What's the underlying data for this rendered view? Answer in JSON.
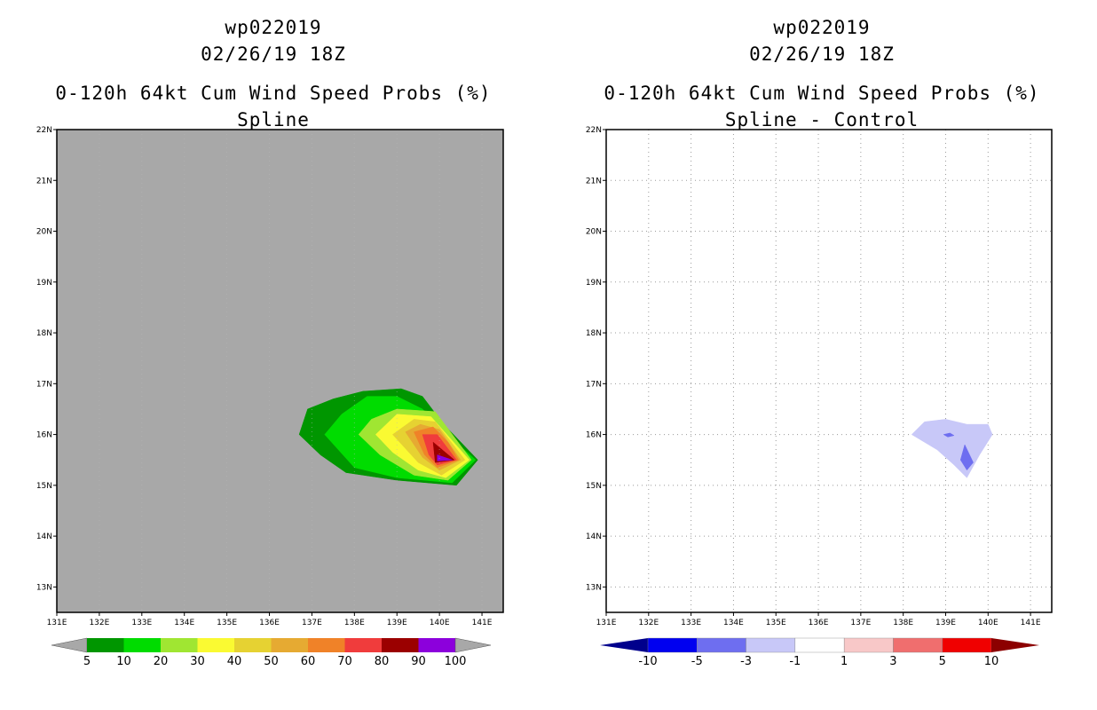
{
  "panels": [
    {
      "id": "left",
      "title_lines": [
        "wp022019",
        "02/26/19 18Z",
        "0-120h 64kt Cum Wind Speed Probs (%)",
        "Spline"
      ],
      "background": "#a8a8a8",
      "grid": false
    },
    {
      "id": "right",
      "title_lines": [
        "wp022019",
        "02/26/19 18Z",
        "0-120h 64kt Cum Wind Speed Probs (%)",
        "Spline - Control"
      ],
      "background": "#ffffff",
      "grid": true
    }
  ],
  "chart_data": [
    {
      "type": "heatmap",
      "subtype": "filled-contour-map",
      "title": "wp022019 02/26/19 18Z 0-120h 64kt Cum Wind Speed Probs (%) Spline",
      "x_axis": {
        "range": [
          131,
          141.5
        ],
        "ticks": [
          131,
          132,
          133,
          134,
          135,
          136,
          137,
          138,
          139,
          140,
          141
        ],
        "tick_labels": [
          "131E",
          "132E",
          "133E",
          "134E",
          "135E",
          "136E",
          "137E",
          "138E",
          "139E",
          "140E",
          "141E"
        ]
      },
      "y_axis": {
        "range": [
          12.5,
          22
        ],
        "ticks": [
          13,
          14,
          15,
          16,
          17,
          18,
          19,
          20,
          21,
          22
        ],
        "tick_labels": [
          "13N",
          "14N",
          "15N",
          "16N",
          "17N",
          "18N",
          "19N",
          "20N",
          "21N",
          "22N"
        ]
      },
      "colorbar": {
        "labels": [
          "5",
          "10",
          "20",
          "30",
          "40",
          "50",
          "60",
          "70",
          "80",
          "90",
          "100"
        ],
        "colors": [
          "#009600",
          "#00dc00",
          "#a0e632",
          "#fafa32",
          "#e6d232",
          "#e6aa32",
          "#f08228",
          "#f03c3c",
          "#9b0000",
          "#8c00dc"
        ]
      },
      "contours": [
        {
          "level": 5,
          "color": "#009600",
          "points": [
            [
              136.7,
              16.0
            ],
            [
              136.9,
              16.5
            ],
            [
              137.5,
              16.7
            ],
            [
              138.2,
              16.85
            ],
            [
              139.1,
              16.9
            ],
            [
              139.6,
              16.75
            ],
            [
              140.1,
              16.2
            ],
            [
              140.9,
              15.5
            ],
            [
              140.4,
              15.0
            ],
            [
              139.0,
              15.1
            ],
            [
              137.8,
              15.25
            ],
            [
              137.2,
              15.6
            ]
          ]
        },
        {
          "level": 10,
          "color": "#00dc00",
          "points": [
            [
              137.3,
              16.0
            ],
            [
              137.7,
              16.4
            ],
            [
              138.3,
              16.75
            ],
            [
              139.0,
              16.75
            ],
            [
              139.6,
              16.5
            ],
            [
              140.05,
              16.1
            ],
            [
              140.85,
              15.5
            ],
            [
              140.3,
              15.05
            ],
            [
              139.0,
              15.15
            ],
            [
              138.0,
              15.35
            ]
          ]
        },
        {
          "level": 20,
          "color": "#a0e632",
          "points": [
            [
              138.1,
              16.0
            ],
            [
              138.4,
              16.3
            ],
            [
              139.0,
              16.5
            ],
            [
              139.9,
              16.45
            ],
            [
              140.75,
              15.5
            ],
            [
              140.2,
              15.1
            ],
            [
              139.4,
              15.2
            ],
            [
              138.6,
              15.6
            ]
          ]
        },
        {
          "level": 30,
          "color": "#fafa32",
          "points": [
            [
              138.5,
              16.0
            ],
            [
              139.0,
              16.4
            ],
            [
              139.8,
              16.35
            ],
            [
              140.7,
              15.5
            ],
            [
              140.15,
              15.15
            ],
            [
              139.5,
              15.3
            ],
            [
              138.9,
              15.65
            ]
          ]
        },
        {
          "level": 40,
          "color": "#e6d232",
          "points": [
            [
              138.9,
              16.0
            ],
            [
              139.4,
              16.3
            ],
            [
              139.9,
              16.25
            ],
            [
              140.6,
              15.5
            ],
            [
              140.05,
              15.2
            ],
            [
              139.5,
              15.45
            ]
          ]
        },
        {
          "level": 50,
          "color": "#e6aa32",
          "points": [
            [
              139.2,
              16.05
            ],
            [
              139.55,
              16.2
            ],
            [
              140.0,
              16.1
            ],
            [
              140.5,
              15.5
            ],
            [
              140.0,
              15.3
            ],
            [
              139.6,
              15.55
            ]
          ]
        },
        {
          "level": 60,
          "color": "#f08228",
          "points": [
            [
              139.4,
              16.05
            ],
            [
              139.85,
              16.15
            ],
            [
              140.2,
              15.85
            ],
            [
              140.45,
              15.5
            ],
            [
              139.95,
              15.35
            ],
            [
              139.65,
              15.6
            ]
          ]
        },
        {
          "level": 70,
          "color": "#f03c3c",
          "points": [
            [
              139.6,
              16.0
            ],
            [
              139.95,
              16.0
            ],
            [
              140.4,
              15.5
            ],
            [
              139.95,
              15.4
            ],
            [
              139.75,
              15.6
            ]
          ]
        },
        {
          "level": 80,
          "color": "#9b0000",
          "points": [
            [
              139.85,
              15.85
            ],
            [
              140.35,
              15.5
            ],
            [
              139.9,
              15.45
            ]
          ]
        },
        {
          "level": 90,
          "color": "#8c00dc",
          "points": [
            [
              139.95,
              15.6
            ],
            [
              140.3,
              15.5
            ],
            [
              139.95,
              15.48
            ]
          ]
        }
      ]
    },
    {
      "type": "heatmap",
      "subtype": "filled-contour-map",
      "title": "wp022019 02/26/19 18Z 0-120h 64kt Cum Wind Speed Probs (%) Spline - Control",
      "x_axis": {
        "range": [
          131,
          141.5
        ],
        "ticks": [
          131,
          132,
          133,
          134,
          135,
          136,
          137,
          138,
          139,
          140,
          141
        ],
        "tick_labels": [
          "131E",
          "132E",
          "133E",
          "134E",
          "135E",
          "136E",
          "137E",
          "138E",
          "139E",
          "140E",
          "141E"
        ]
      },
      "y_axis": {
        "range": [
          12.5,
          22
        ],
        "ticks": [
          13,
          14,
          15,
          16,
          17,
          18,
          19,
          20,
          21,
          22
        ],
        "tick_labels": [
          "13N",
          "14N",
          "15N",
          "16N",
          "17N",
          "18N",
          "19N",
          "20N",
          "21N",
          "22N"
        ]
      },
      "colorbar": {
        "labels": [
          "-10",
          "-5",
          "-3",
          "-1",
          "1",
          "3",
          "5",
          "10"
        ],
        "colors": [
          "#00008c",
          "#0000f0",
          "#6e6ef0",
          "#c8c8f8",
          "#ffffff",
          "#f8c8c8",
          "#f06e6e",
          "#f00000",
          "#8c0000"
        ]
      },
      "contours": [
        {
          "level": -1,
          "color": "#c8c8f8",
          "points": [
            [
              138.2,
              16.0
            ],
            [
              138.5,
              16.25
            ],
            [
              139.0,
              16.3
            ],
            [
              139.5,
              16.2
            ],
            [
              140.0,
              16.2
            ],
            [
              140.1,
              16.0
            ],
            [
              139.8,
              15.6
            ],
            [
              139.5,
              15.15
            ],
            [
              139.2,
              15.4
            ],
            [
              138.8,
              15.7
            ]
          ]
        },
        {
          "level": -3,
          "color": "#6e6ef0",
          "points": [
            [
              139.45,
              15.8
            ],
            [
              139.65,
              15.45
            ],
            [
              139.5,
              15.3
            ],
            [
              139.35,
              15.5
            ]
          ]
        },
        {
          "level": -3,
          "color": "#6e6ef0",
          "points": [
            [
              138.95,
              16.0
            ],
            [
              139.1,
              16.03
            ],
            [
              139.2,
              15.98
            ],
            [
              139.05,
              15.95
            ]
          ]
        }
      ]
    }
  ]
}
